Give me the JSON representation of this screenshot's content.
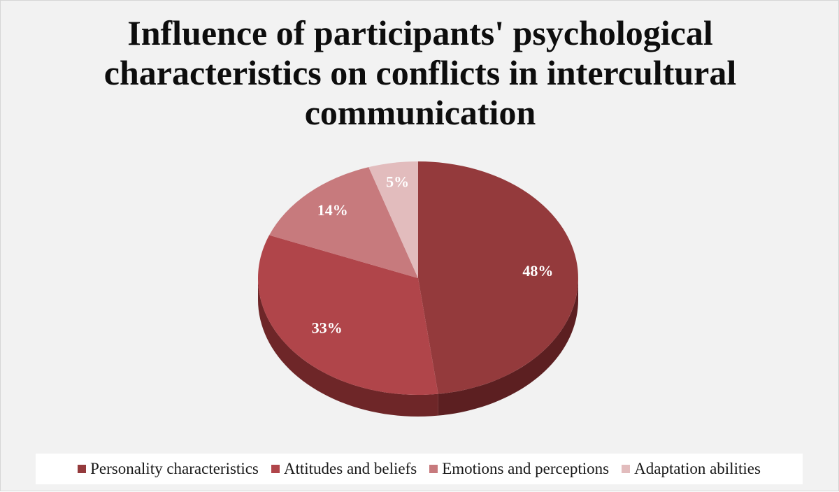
{
  "chart_data": {
    "type": "pie",
    "title_lines": [
      "Influence of participants' psychological",
      "characteristics on conflicts in intercultural",
      "communication"
    ],
    "categories": [
      "Personality characteristics",
      "Attitudes and beliefs",
      "Emotions and perceptions",
      "Adaptation abilities"
    ],
    "values": [
      48,
      33,
      14,
      5
    ],
    "data_labels": [
      "48%",
      "33%",
      "14%",
      "5%"
    ],
    "colors": [
      "#943a3c",
      "#b0454a",
      "#c77a7d",
      "#e2bcbd"
    ],
    "side_colors": [
      "#5c1f21",
      "#6e2628",
      "#7d4a4c",
      "#8e7070"
    ],
    "legend_position": "bottom",
    "style": "3d-pie"
  }
}
